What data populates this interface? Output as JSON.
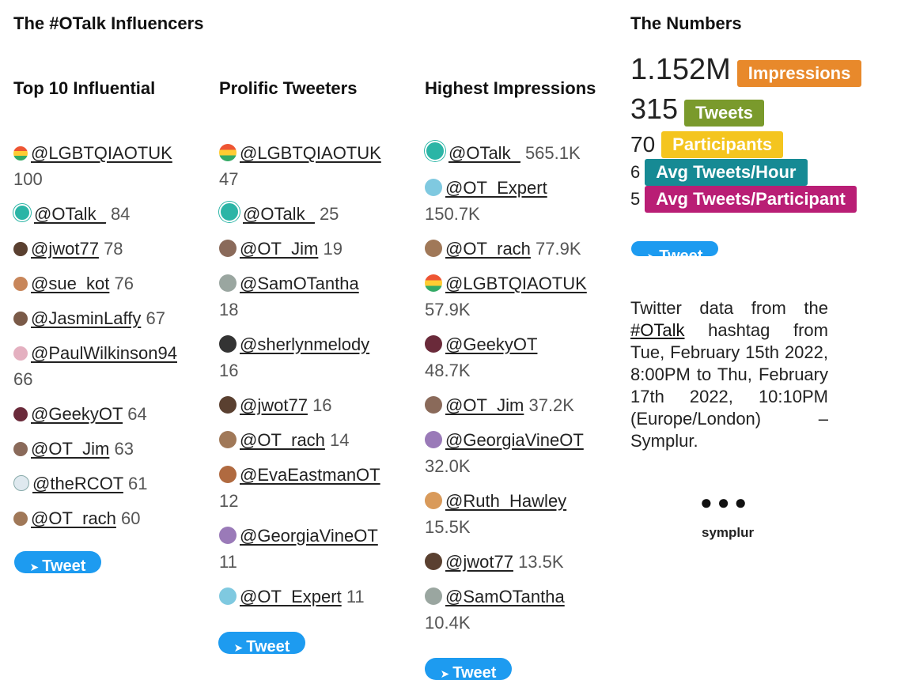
{
  "header": {
    "title": "The #OTalk Influencers",
    "numbers_title": "The Numbers"
  },
  "columns": [
    {
      "title": "Top 10 Influential",
      "items": [
        {
          "handle": "@LGBTQIAOTUK",
          "value": "100"
        },
        {
          "handle": "@OTalk_",
          "value": "84"
        },
        {
          "handle": "@jwot77",
          "value": "78"
        },
        {
          "handle": "@sue_kot",
          "value": "76"
        },
        {
          "handle": "@JasminLaffy",
          "value": "67"
        },
        {
          "handle": "@PaulWilkinson94",
          "value": "66"
        },
        {
          "handle": "@GeekyOT",
          "value": "64"
        },
        {
          "handle": "@OT_Jim",
          "value": "63"
        },
        {
          "handle": "@theRCOT",
          "value": "61"
        },
        {
          "handle": "@OT_rach",
          "value": "60"
        }
      ]
    },
    {
      "title": "Prolific Tweeters",
      "items": [
        {
          "handle": "@LGBTQIAOTUK",
          "value": "47"
        },
        {
          "handle": "@OTalk_",
          "value": "25"
        },
        {
          "handle": "@OT_Jim",
          "value": "19"
        },
        {
          "handle": "@SamOTantha",
          "value": "18"
        },
        {
          "handle": "@sherlynmelody",
          "value": "16"
        },
        {
          "handle": "@jwot77",
          "value": "16"
        },
        {
          "handle": "@OT_rach",
          "value": "14"
        },
        {
          "handle": "@EvaEastmanOT",
          "value": "12"
        },
        {
          "handle": "@GeorgiaVineOT",
          "value": "11"
        },
        {
          "handle": "@OT_Expert",
          "value": "11"
        }
      ]
    },
    {
      "title": "Highest Impressions",
      "items": [
        {
          "handle": "@OTalk_",
          "value": "565.1K"
        },
        {
          "handle": "@OT_Expert",
          "value": "150.7K"
        },
        {
          "handle": "@OT_rach",
          "value": "77.9K"
        },
        {
          "handle": "@LGBTQIAOTUK",
          "value": "57.9K"
        },
        {
          "handle": "@GeekyOT",
          "value": "48.7K"
        },
        {
          "handle": "@OT_Jim",
          "value": "37.2K"
        },
        {
          "handle": "@GeorgiaVineOT",
          "value": "32.0K"
        },
        {
          "handle": "@Ruth_Hawley",
          "value": "15.5K"
        },
        {
          "handle": "@jwot77",
          "value": "13.5K"
        },
        {
          "handle": "@SamOTantha",
          "value": "10.4K"
        }
      ]
    }
  ],
  "tweet_button_label": "Tweet",
  "stats": [
    {
      "number": "1.152M",
      "label": "Impressions",
      "color": "#e8892b"
    },
    {
      "number": "315",
      "label": "Tweets",
      "color": "#7a9a2c"
    },
    {
      "number": "70",
      "label": "Participants",
      "color": "#f4c51f"
    },
    {
      "number": "6",
      "label": "Avg Tweets/Hour",
      "color": "#168a94"
    },
    {
      "number": "5",
      "label": "Avg Tweets/Participant",
      "color": "#b91e75"
    }
  ],
  "description": {
    "before": "Twitter data from the ",
    "link": "#OTalk",
    "after": " hashtag from Tue, February 15th 2022, 8:00PM to Thu, February 17th 2022, 10:10PM (Europe/London) – Symplur."
  },
  "brand": {
    "dots": "●●●",
    "name": "symplur"
  }
}
